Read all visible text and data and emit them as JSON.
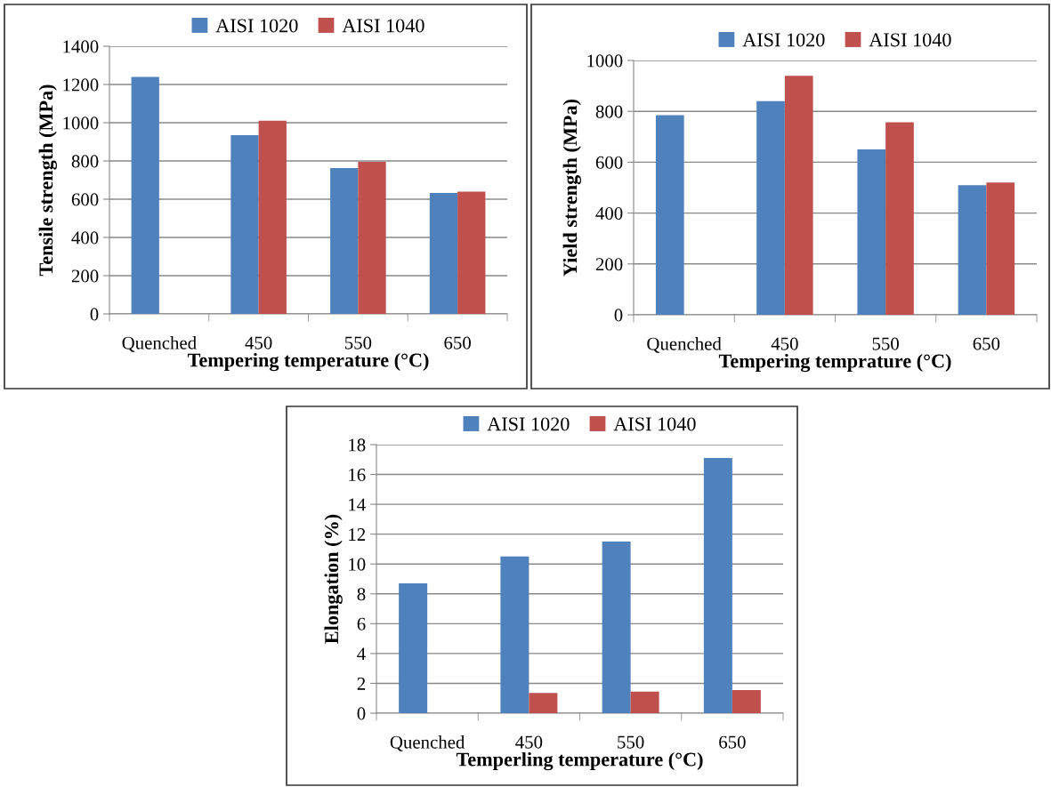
{
  "chart_data": [
    {
      "type": "bar",
      "categories": [
        "Quenched",
        "450",
        "550",
        "650"
      ],
      "xlabel": "Tempering temperature (°C)",
      "ylabel": "Tensile strength (MPa)",
      "ylim": [
        0,
        1400
      ],
      "yticks": [
        0,
        200,
        400,
        600,
        800,
        1000,
        1200,
        1400
      ],
      "grid": "y",
      "legend": "top",
      "series": [
        {
          "name": "AISI 1020",
          "color": "#4f81bd",
          "values": [
            1240,
            935,
            763,
            633
          ]
        },
        {
          "name": "AISI 1040",
          "color": "#c0504d",
          "values": [
            null,
            1010,
            795,
            640
          ]
        }
      ]
    },
    {
      "type": "bar",
      "categories": [
        "Quenched",
        "450",
        "550",
        "650"
      ],
      "xlabel": "Tempering temprature (°C)",
      "ylabel": "Yield strength (MPa)",
      "ylim": [
        0,
        1000
      ],
      "yticks": [
        0,
        200,
        400,
        600,
        800,
        1000
      ],
      "grid": "y",
      "legend": "top",
      "series": [
        {
          "name": "AISI 1020",
          "color": "#4f81bd",
          "values": [
            785,
            840,
            650,
            510
          ]
        },
        {
          "name": "AISI 1040",
          "color": "#c0504d",
          "values": [
            null,
            940,
            757,
            520
          ]
        }
      ]
    },
    {
      "type": "bar",
      "categories": [
        "Quenched",
        "450",
        "550",
        "650"
      ],
      "xlabel": "Temperling temperature (°C)",
      "ylabel": "Elongation (%)",
      "ylim": [
        0,
        18
      ],
      "yticks": [
        0,
        2,
        4,
        6,
        8,
        10,
        12,
        14,
        16,
        18
      ],
      "grid": "y",
      "legend": "top",
      "series": [
        {
          "name": "AISI 1020",
          "color": "#4f81bd",
          "values": [
            8.7,
            10.5,
            11.5,
            17.1
          ]
        },
        {
          "name": "AISI 1040",
          "color": "#c0504d",
          "values": [
            null,
            1.35,
            1.45,
            1.55
          ]
        }
      ]
    }
  ]
}
